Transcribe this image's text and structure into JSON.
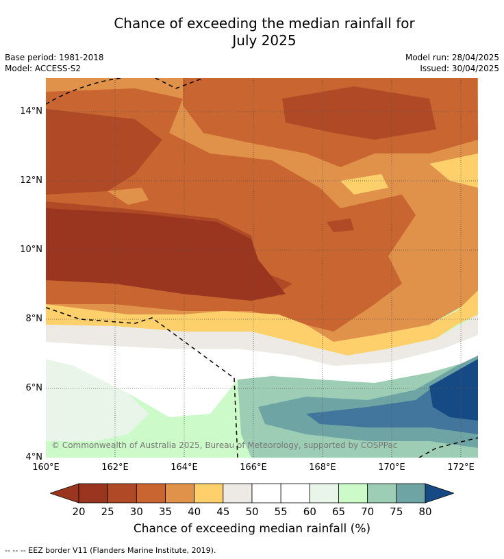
{
  "title": {
    "line1": "Chance of exceeding the median rainfall for",
    "line2": "July 2025"
  },
  "meta": {
    "base_period": "Base period: 1981-2018",
    "model": "Model: ACCESS-S2",
    "model_run": "Model run: 28/04/2025",
    "issued": "Issued: 30/04/2025"
  },
  "map": {
    "copyright": "© Commonwealth of Australia 2025, Bureau of Meteorology, supported by COSPPac",
    "x_ticks": [
      "160°E",
      "162°E",
      "164°E",
      "166°E",
      "168°E",
      "170°E",
      "172°E"
    ],
    "y_ticks": [
      "14°N",
      "12°N",
      "10°N",
      "8°N",
      "6°N",
      "4°N"
    ]
  },
  "colorbar": {
    "labels": [
      "20",
      "25",
      "30",
      "35",
      "40",
      "45",
      "50",
      "55",
      "60",
      "65",
      "70",
      "75",
      "80"
    ],
    "colors": [
      "#9a3520",
      "#b04a26",
      "#c96530",
      "#e0914a",
      "#fdd06b",
      "#ede9e4",
      "#ffffff",
      "#ffffff",
      "#eaf5e9",
      "#ccfac8",
      "#9dceb5",
      "#6ea5a4",
      "#42769c"
    ],
    "under_color": "#9a3520",
    "over_color": "#164a85",
    "title": "Chance of exceeding median rainfall (%)"
  },
  "footer": "-- -- -- EEZ border V11 (Flanders Marine Institute, 2019)."
}
